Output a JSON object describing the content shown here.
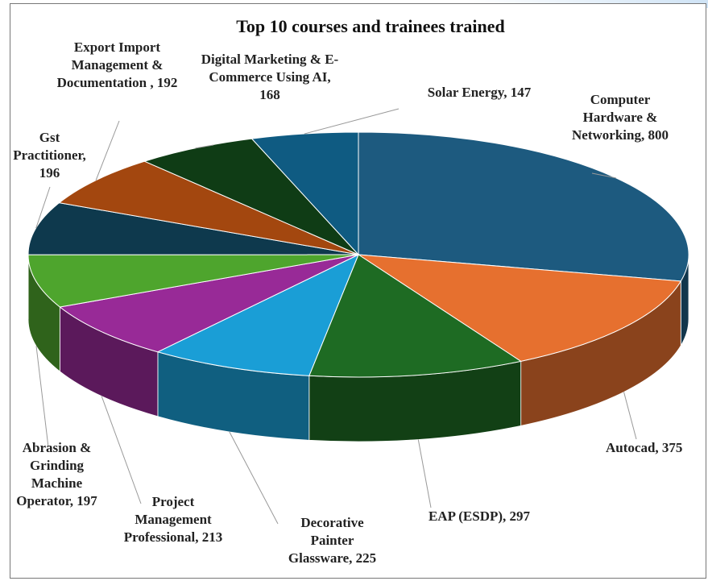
{
  "chart_data": {
    "type": "pie",
    "title": "Top 10 courses and trainees trained",
    "values": [
      800,
      375,
      297,
      225,
      213,
      197,
      196,
      192,
      168,
      147
    ],
    "value_labels": [
      "Computer Hardware & Networking, 800",
      "Autocad, 375",
      "EAP (ESDP), 297",
      "Decorative Painter Glassware, 225",
      "Project Management Professional, 213",
      "Abrasion & Grinding Machine Operator, 197",
      "Gst Practitioner, 196",
      "Export Import Management & Documentation , 192",
      "Digital Marketing & E-Commerce Using AI, 168",
      "Solar Energy, 147"
    ],
    "colors": [
      "#1d5a7f",
      "#e6702f",
      "#1e6b23",
      "#1a9ed6",
      "#982a97",
      "#4ea52d",
      "#0e394d",
      "#a3470f",
      "#0f3c15",
      "#0f5b82"
    ]
  }
}
